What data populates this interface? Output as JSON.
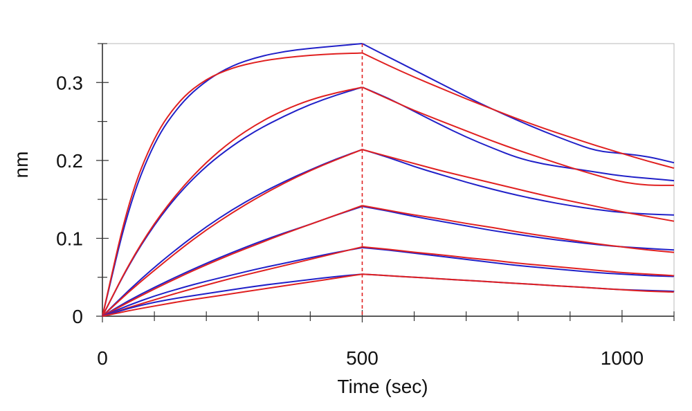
{
  "chart_data": {
    "type": "line",
    "title": "",
    "xlabel": "Time (sec)",
    "ylabel": "nm",
    "xlim": [
      0,
      1100
    ],
    "ylim": [
      0,
      0.35
    ],
    "xticks": [
      0,
      500,
      1000
    ],
    "xtick_labels": [
      "0",
      "500",
      "1000"
    ],
    "yticks": [
      0,
      0.1,
      0.2,
      0.3
    ],
    "ytick_labels": [
      "0",
      "0.1",
      "0.2",
      "0.3"
    ],
    "grid": false,
    "legend": "none",
    "dissociation_start": 500,
    "colors": {
      "measured": "#2020c8",
      "fitted": "#e02020",
      "marker_line": "#e02020"
    },
    "series": [
      {
        "x": [
          0,
          50,
          100,
          150,
          200,
          250,
          300,
          350,
          400,
          450,
          500,
          550,
          600,
          650,
          700,
          750,
          800,
          850,
          900,
          950,
          1000,
          1050,
          1100
        ],
        "measured": [
          0,
          0.14,
          0.225,
          0.273,
          0.303,
          0.322,
          0.333,
          0.34,
          0.344,
          0.347,
          0.35,
          0.333,
          0.316,
          0.299,
          0.282,
          0.266,
          0.251,
          0.237,
          0.224,
          0.212,
          0.209,
          0.205,
          0.197
        ],
        "fitted": [
          0,
          0.148,
          0.232,
          0.279,
          0.305,
          0.319,
          0.327,
          0.332,
          0.335,
          0.337,
          0.338,
          0.322,
          0.307,
          0.293,
          0.279,
          0.266,
          0.253,
          0.241,
          0.23,
          0.219,
          0.209,
          0.199,
          0.19
        ]
      },
      {
        "x": [
          0,
          50,
          100,
          150,
          200,
          250,
          300,
          350,
          400,
          450,
          500,
          550,
          600,
          650,
          700,
          750,
          800,
          850,
          900,
          950,
          1000,
          1050,
          1100
        ],
        "measured": [
          0,
          0.065,
          0.118,
          0.16,
          0.193,
          0.219,
          0.24,
          0.257,
          0.272,
          0.284,
          0.294,
          0.28,
          0.263,
          0.246,
          0.23,
          0.216,
          0.203,
          0.195,
          0.19,
          0.185,
          0.18,
          0.177,
          0.174
        ],
        "fitted": [
          0,
          0.066,
          0.12,
          0.163,
          0.198,
          0.226,
          0.248,
          0.265,
          0.278,
          0.287,
          0.294,
          0.279,
          0.264,
          0.251,
          0.238,
          0.225,
          0.213,
          0.202,
          0.191,
          0.181,
          0.172,
          0.168,
          0.168
        ]
      },
      {
        "x": [
          0,
          50,
          100,
          150,
          200,
          250,
          300,
          350,
          400,
          450,
          500,
          550,
          600,
          650,
          700,
          750,
          800,
          850,
          900,
          950,
          1000,
          1050,
          1100
        ],
        "measured": [
          0,
          0.033,
          0.063,
          0.09,
          0.115,
          0.137,
          0.156,
          0.173,
          0.188,
          0.202,
          0.214,
          0.204,
          0.192,
          0.182,
          0.172,
          0.163,
          0.155,
          0.148,
          0.142,
          0.137,
          0.133,
          0.131,
          0.13
        ],
        "fitted": [
          0,
          0.031,
          0.059,
          0.086,
          0.111,
          0.133,
          0.153,
          0.171,
          0.187,
          0.201,
          0.214,
          0.205,
          0.196,
          0.187,
          0.179,
          0.171,
          0.163,
          0.155,
          0.148,
          0.141,
          0.134,
          0.128,
          0.122
        ]
      },
      {
        "x": [
          0,
          50,
          100,
          150,
          200,
          250,
          300,
          350,
          400,
          450,
          500,
          550,
          600,
          650,
          700,
          750,
          800,
          850,
          900,
          950,
          1000,
          1050,
          1100
        ],
        "measured": [
          0,
          0.02,
          0.037,
          0.053,
          0.068,
          0.082,
          0.095,
          0.107,
          0.118,
          0.13,
          0.141,
          0.135,
          0.128,
          0.122,
          0.116,
          0.11,
          0.105,
          0.1,
          0.096,
          0.092,
          0.089,
          0.087,
          0.085
        ],
        "fitted": [
          0,
          0.018,
          0.035,
          0.051,
          0.066,
          0.08,
          0.093,
          0.106,
          0.118,
          0.13,
          0.142,
          0.136,
          0.13,
          0.125,
          0.119,
          0.114,
          0.108,
          0.103,
          0.098,
          0.093,
          0.089,
          0.085,
          0.082
        ]
      },
      {
        "x": [
          0,
          50,
          100,
          150,
          200,
          250,
          300,
          350,
          400,
          450,
          500,
          550,
          600,
          650,
          700,
          750,
          800,
          850,
          900,
          950,
          1000,
          1050,
          1100
        ],
        "measured": [
          0,
          0.014,
          0.026,
          0.036,
          0.045,
          0.053,
          0.061,
          0.068,
          0.075,
          0.082,
          0.088,
          0.085,
          0.081,
          0.077,
          0.073,
          0.069,
          0.065,
          0.062,
          0.059,
          0.056,
          0.054,
          0.052,
          0.051
        ],
        "fitted": [
          0,
          0.011,
          0.021,
          0.031,
          0.04,
          0.049,
          0.057,
          0.065,
          0.073,
          0.081,
          0.089,
          0.086,
          0.082,
          0.079,
          0.075,
          0.072,
          0.068,
          0.065,
          0.062,
          0.059,
          0.056,
          0.054,
          0.052
        ]
      },
      {
        "x": [
          0,
          50,
          100,
          150,
          200,
          250,
          300,
          350,
          400,
          450,
          500,
          550,
          600,
          650,
          700,
          750,
          800,
          850,
          900,
          950,
          1000,
          1050,
          1100
        ],
        "measured": [
          0,
          0.01,
          0.018,
          0.024,
          0.029,
          0.034,
          0.039,
          0.043,
          0.047,
          0.051,
          0.054,
          0.052,
          0.05,
          0.048,
          0.046,
          0.044,
          0.042,
          0.04,
          0.038,
          0.036,
          0.034,
          0.033,
          0.032
        ],
        "fitted": [
          0,
          0.007,
          0.013,
          0.019,
          0.024,
          0.029,
          0.034,
          0.039,
          0.044,
          0.049,
          0.054,
          0.052,
          0.05,
          0.048,
          0.046,
          0.044,
          0.042,
          0.04,
          0.038,
          0.036,
          0.034,
          0.032,
          0.031
        ]
      }
    ]
  }
}
